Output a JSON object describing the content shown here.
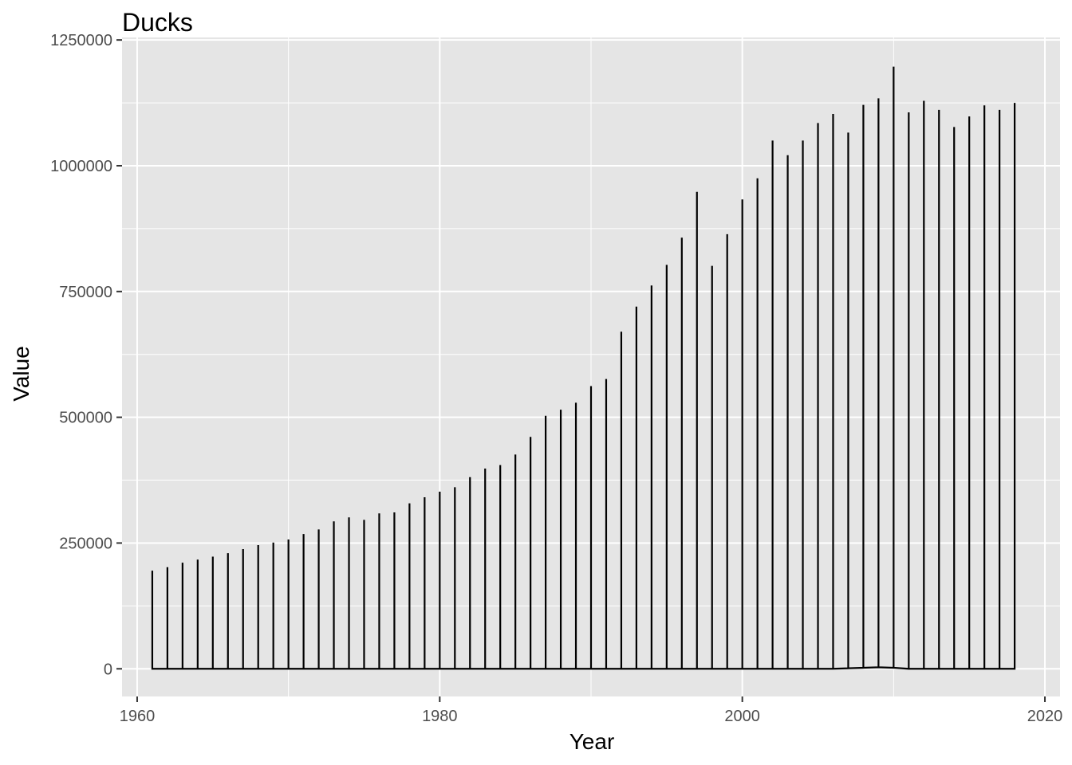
{
  "chart_data": {
    "type": "line",
    "title": "Ducks",
    "xlabel": "Year",
    "ylabel": "Value",
    "xlim": [
      1959,
      2021
    ],
    "ylim": [
      -55000,
      1255000
    ],
    "x_ticks": [
      1960,
      1980,
      2000,
      2020
    ],
    "y_ticks": [
      0,
      250000,
      500000,
      750000,
      1000000,
      1250000
    ],
    "x_tick_labels": [
      "1960",
      "1980",
      "2000",
      "2020"
    ],
    "y_tick_labels": [
      "0",
      "250000",
      "500000",
      "750000",
      "1000000",
      "1250000"
    ],
    "grid": true,
    "legend": "none",
    "colors": {
      "panel": "#e5e5e5",
      "grid": "#ffffff",
      "line": "#000000",
      "tick": "#333333"
    },
    "series": [
      {
        "years": [
          1961,
          1962,
          1963,
          1964,
          1965,
          1966,
          1967,
          1968,
          1969,
          1970,
          1971,
          1972,
          1973,
          1974,
          1975,
          1976,
          1977,
          1978,
          1979,
          1980,
          1981,
          1982,
          1983,
          1984,
          1985,
          1986,
          1987,
          1988,
          1989,
          1990,
          1991,
          1992,
          1993,
          1994,
          1995,
          1996,
          1997,
          1998,
          1999,
          2000,
          2001,
          2002,
          2003,
          2004,
          2005,
          2006,
          2007,
          2008,
          2009,
          2010,
          2011,
          2012,
          2013,
          2014,
          2015,
          2016,
          2017,
          2018
        ],
        "peak_values": [
          195000,
          202000,
          211000,
          217000,
          223000,
          230000,
          238000,
          246000,
          251000,
          257000,
          268000,
          277000,
          293000,
          301000,
          296000,
          309000,
          311000,
          329000,
          341000,
          352000,
          361000,
          381000,
          398000,
          405000,
          426000,
          461000,
          503000,
          515000,
          529000,
          562000,
          576000,
          670000,
          720000,
          762000,
          803000,
          857000,
          948000,
          801000,
          864000,
          933000,
          975000,
          1050000,
          1021000,
          1050000,
          1085000,
          1103000,
          1066000,
          1121000,
          1134000,
          1197000,
          1106000,
          1129000,
          1111000,
          1077000,
          1098000,
          1120000,
          1111000,
          1125000
        ],
        "low_values": [
          0,
          0,
          0,
          0,
          0,
          0,
          0,
          0,
          0,
          0,
          0,
          0,
          0,
          0,
          0,
          0,
          0,
          0,
          0,
          0,
          0,
          0,
          0,
          0,
          0,
          0,
          0,
          0,
          0,
          0,
          0,
          0,
          0,
          0,
          0,
          0,
          0,
          0,
          0,
          0,
          0,
          0,
          0,
          0,
          0,
          0,
          1000,
          2000,
          3000,
          2000,
          0,
          0,
          0,
          0,
          0,
          0,
          0,
          0
        ]
      }
    ]
  }
}
